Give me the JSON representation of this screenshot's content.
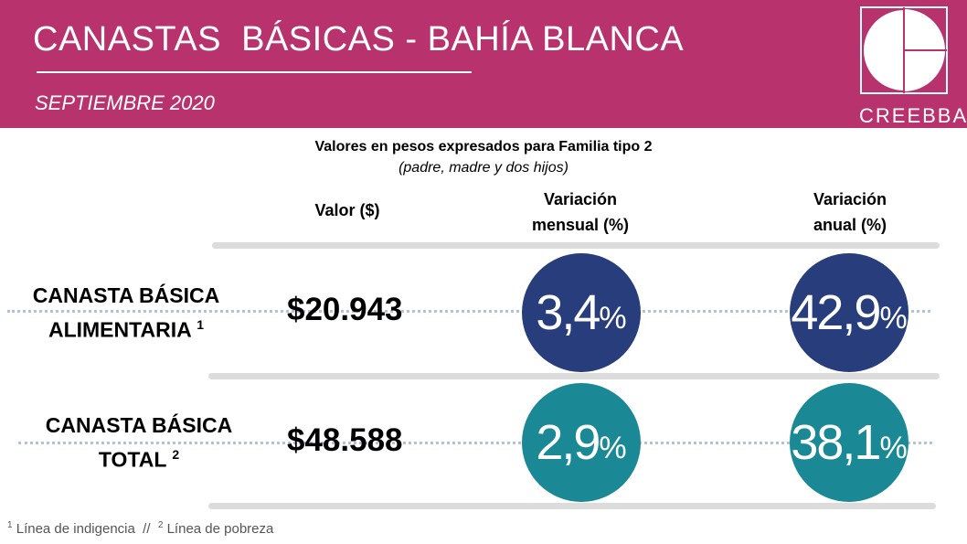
{
  "header": {
    "title": "CANASTAS  BÁSICAS - BAHÍA BLANCA",
    "subtitle": "SEPTIEMBRE 2020",
    "logo_text": "CREEBBA"
  },
  "notes": {
    "main": "Valores en pesos expresados para Familia tipo 2",
    "paren": "(padre, madre y dos hijos)"
  },
  "columns": {
    "valor": "Valor ($)",
    "mensual_line1": "Variación",
    "mensual_line2": "mensual (%)",
    "anual_line1": "Variación",
    "anual_line2": "anual (%)"
  },
  "rows": [
    {
      "label_line1": "CANASTA BÁSICA",
      "label_line2": "ALIMENTARIA",
      "sup": "1",
      "value": "$20.943",
      "mensual": "3,4",
      "anual": "42,9",
      "color": "#283d7c"
    },
    {
      "label_line1": "CANASTA BÁSICA",
      "label_line2": "TOTAL",
      "sup": "2",
      "value": "$48.588",
      "mensual": "2,9",
      "anual": "38,1",
      "color": "#1a8995"
    }
  ],
  "percent_sign": "%",
  "footnote": {
    "sup1": "1",
    "text1": " Línea de indigencia",
    "sep": "  //  ",
    "sup2": "2",
    "text2": " Línea de pobreza"
  },
  "colors": {
    "header_bg": "#b8336e",
    "navy": "#283d7c",
    "teal": "#1a8995"
  }
}
